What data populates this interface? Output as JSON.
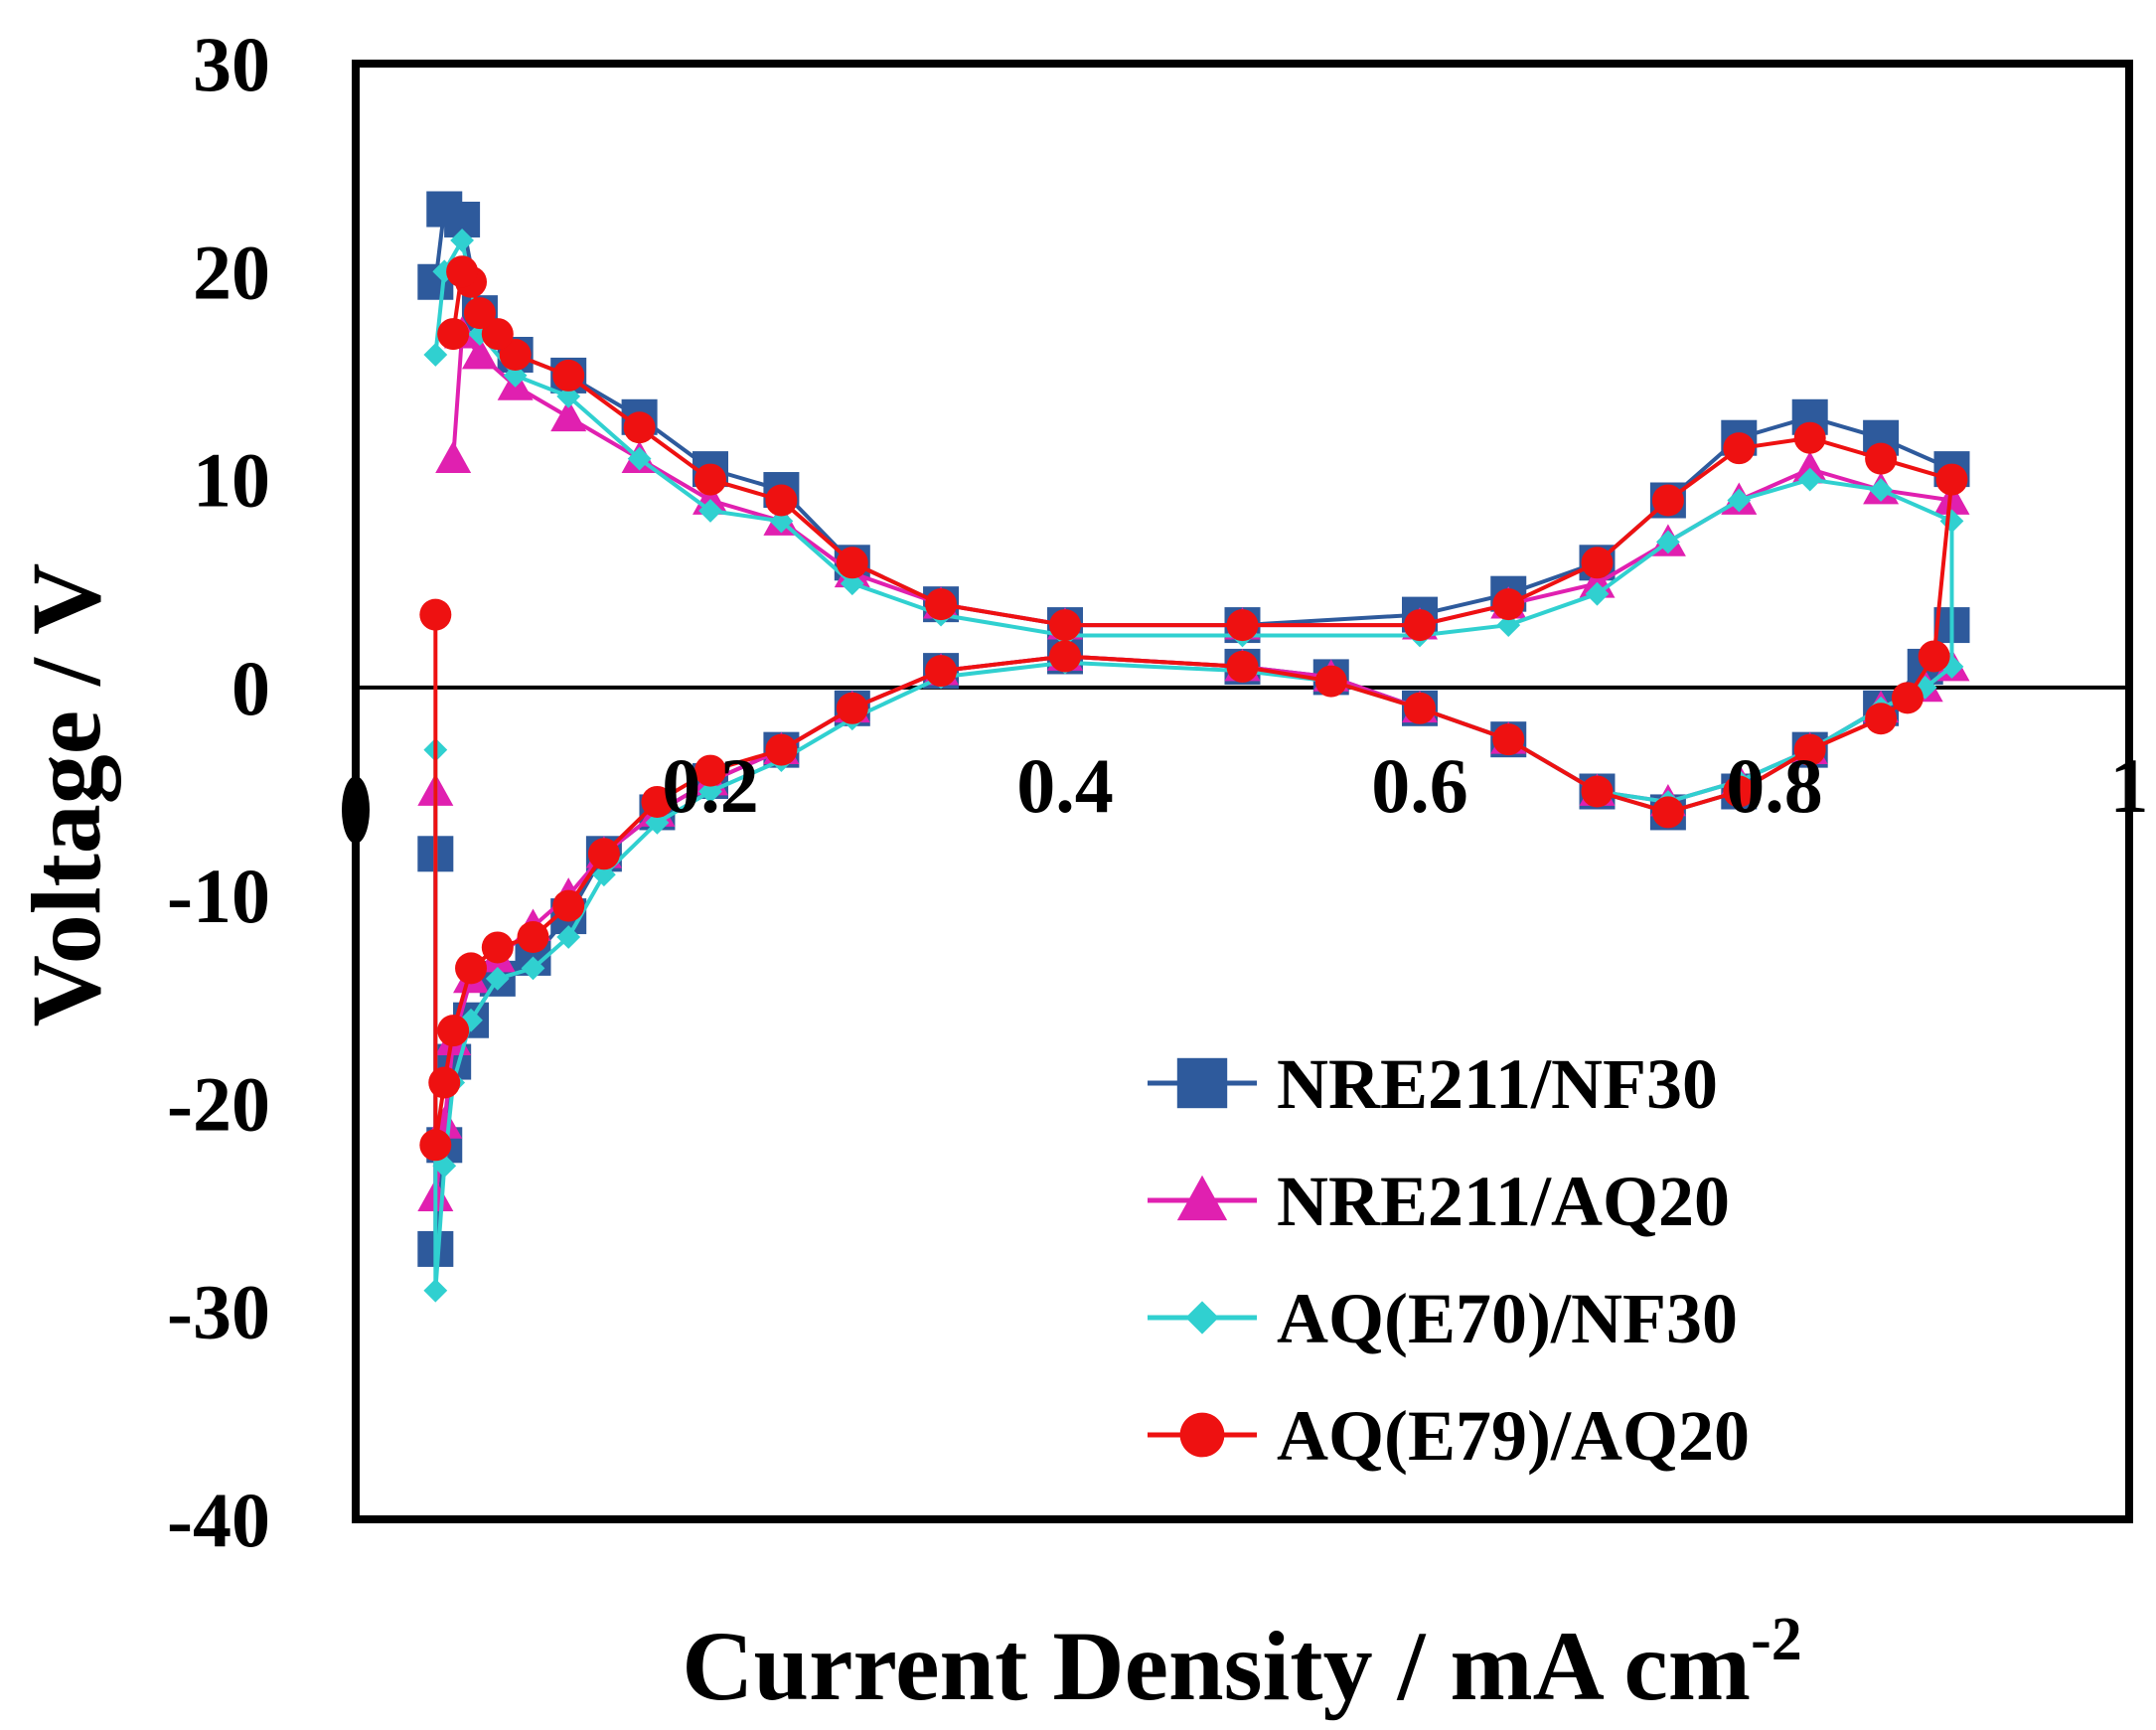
{
  "chart_data": {
    "type": "scatter",
    "title": "",
    "xlabel": "Current Density / mA cm",
    "xlabel_superscript": "-2",
    "ylabel": "Voltage / V",
    "xlim": [
      0,
      1
    ],
    "ylim": [
      -40,
      30
    ],
    "x_ticks": [
      "0",
      "0.2",
      "0.4",
      "0.6",
      "0.8",
      "1"
    ],
    "y_ticks": [
      "30",
      "20",
      "10",
      "0",
      "-10",
      "-20",
      "-30",
      "-40"
    ],
    "legend_position": "bottom-right",
    "series": [
      {
        "name": "NRE211/NF30",
        "color": "#2e5a9c",
        "marker": "square",
        "points": [
          [
            0.045,
            -8
          ],
          [
            0.045,
            -27
          ],
          [
            0.05,
            -22
          ],
          [
            0.055,
            -18
          ],
          [
            0.065,
            -16
          ],
          [
            0.08,
            -14
          ],
          [
            0.1,
            -13
          ],
          [
            0.12,
            -11
          ],
          [
            0.14,
            -8
          ],
          [
            0.17,
            -6
          ],
          [
            0.2,
            -4.5
          ],
          [
            0.24,
            -3
          ],
          [
            0.28,
            -1
          ],
          [
            0.33,
            0.8
          ],
          [
            0.4,
            1.5
          ],
          [
            0.5,
            1
          ],
          [
            0.55,
            0.5
          ],
          [
            0.6,
            -1
          ],
          [
            0.65,
            -2.5
          ],
          [
            0.7,
            -5
          ],
          [
            0.74,
            -6
          ],
          [
            0.78,
            -5
          ],
          [
            0.82,
            -3
          ],
          [
            0.86,
            -1
          ],
          [
            0.885,
            1
          ],
          [
            0.9,
            3
          ],
          [
            0.9,
            10.5
          ],
          [
            0.86,
            12
          ],
          [
            0.82,
            13
          ],
          [
            0.78,
            12
          ],
          [
            0.74,
            9
          ],
          [
            0.7,
            6
          ],
          [
            0.65,
            4.5
          ],
          [
            0.6,
            3.5
          ],
          [
            0.5,
            3
          ],
          [
            0.4,
            3
          ],
          [
            0.33,
            4
          ],
          [
            0.28,
            6
          ],
          [
            0.24,
            9.5
          ],
          [
            0.2,
            10.5
          ],
          [
            0.16,
            13
          ],
          [
            0.12,
            15
          ],
          [
            0.09,
            16
          ],
          [
            0.07,
            18
          ],
          [
            0.06,
            22.5
          ],
          [
            0.05,
            23
          ],
          [
            0.045,
            19.5
          ]
        ]
      },
      {
        "name": "NRE211/AQ20",
        "color": "#e020b0",
        "marker": "triangle",
        "points": [
          [
            0.045,
            -5
          ],
          [
            0.045,
            -24.5
          ],
          [
            0.05,
            -21
          ],
          [
            0.055,
            -17
          ],
          [
            0.065,
            -14
          ],
          [
            0.08,
            -13
          ],
          [
            0.1,
            -11.5
          ],
          [
            0.12,
            -10
          ],
          [
            0.14,
            -8
          ],
          [
            0.17,
            -6
          ],
          [
            0.2,
            -4.5
          ],
          [
            0.24,
            -3
          ],
          [
            0.28,
            -1
          ],
          [
            0.33,
            0.8
          ],
          [
            0.4,
            1.5
          ],
          [
            0.5,
            1
          ],
          [
            0.55,
            0.5
          ],
          [
            0.6,
            -1
          ],
          [
            0.65,
            -2.5
          ],
          [
            0.7,
            -5
          ],
          [
            0.74,
            -5.5
          ],
          [
            0.78,
            -4.5
          ],
          [
            0.82,
            -3
          ],
          [
            0.86,
            -1
          ],
          [
            0.885,
            0
          ],
          [
            0.9,
            1
          ],
          [
            0.9,
            9
          ],
          [
            0.86,
            9.5
          ],
          [
            0.82,
            10.5
          ],
          [
            0.78,
            9
          ],
          [
            0.74,
            7
          ],
          [
            0.7,
            5
          ],
          [
            0.65,
            4
          ],
          [
            0.6,
            3
          ],
          [
            0.5,
            3
          ],
          [
            0.4,
            3
          ],
          [
            0.33,
            4
          ],
          [
            0.28,
            5.5
          ],
          [
            0.24,
            8
          ],
          [
            0.2,
            9
          ],
          [
            0.16,
            11
          ],
          [
            0.12,
            13
          ],
          [
            0.09,
            14.5
          ],
          [
            0.07,
            16
          ],
          [
            0.06,
            17
          ],
          [
            0.055,
            11
          ]
        ]
      },
      {
        "name": "AQ(E70)/NF30",
        "color": "#30d0d0",
        "marker": "diamond",
        "points": [
          [
            0.045,
            -3
          ],
          [
            0.045,
            -29
          ],
          [
            0.05,
            -23
          ],
          [
            0.055,
            -19
          ],
          [
            0.065,
            -16
          ],
          [
            0.08,
            -14
          ],
          [
            0.1,
            -13.5
          ],
          [
            0.12,
            -12
          ],
          [
            0.14,
            -9
          ],
          [
            0.17,
            -6.5
          ],
          [
            0.2,
            -5
          ],
          [
            0.24,
            -3.5
          ],
          [
            0.28,
            -1.5
          ],
          [
            0.33,
            0.5
          ],
          [
            0.4,
            1.2
          ],
          [
            0.5,
            0.8
          ],
          [
            0.55,
            0.3
          ],
          [
            0.6,
            -1
          ],
          [
            0.65,
            -2.5
          ],
          [
            0.7,
            -5
          ],
          [
            0.74,
            -5.5
          ],
          [
            0.78,
            -4.5
          ],
          [
            0.82,
            -3
          ],
          [
            0.86,
            -1
          ],
          [
            0.885,
            0
          ],
          [
            0.9,
            1
          ],
          [
            0.9,
            8
          ],
          [
            0.86,
            9.5
          ],
          [
            0.82,
            10
          ],
          [
            0.78,
            9
          ],
          [
            0.74,
            7
          ],
          [
            0.7,
            4.5
          ],
          [
            0.65,
            3
          ],
          [
            0.6,
            2.5
          ],
          [
            0.5,
            2.5
          ],
          [
            0.4,
            2.5
          ],
          [
            0.33,
            3.5
          ],
          [
            0.28,
            5
          ],
          [
            0.24,
            8
          ],
          [
            0.2,
            8.5
          ],
          [
            0.16,
            11
          ],
          [
            0.12,
            14
          ],
          [
            0.09,
            15
          ],
          [
            0.07,
            17
          ],
          [
            0.06,
            21.5
          ],
          [
            0.05,
            20
          ],
          [
            0.045,
            16
          ]
        ]
      },
      {
        "name": "AQ(E79)/AQ20",
        "color": "#ee1111",
        "marker": "circle",
        "points": [
          [
            0.045,
            3.5
          ],
          [
            0.045,
            -22
          ],
          [
            0.05,
            -19
          ],
          [
            0.055,
            -16.5
          ],
          [
            0.065,
            -13.5
          ],
          [
            0.08,
            -12.5
          ],
          [
            0.1,
            -12
          ],
          [
            0.12,
            -10.5
          ],
          [
            0.14,
            -8
          ],
          [
            0.17,
            -5.5
          ],
          [
            0.2,
            -4
          ],
          [
            0.24,
            -3
          ],
          [
            0.28,
            -1
          ],
          [
            0.33,
            0.8
          ],
          [
            0.4,
            1.5
          ],
          [
            0.5,
            1
          ],
          [
            0.55,
            0.3
          ],
          [
            0.6,
            -1
          ],
          [
            0.65,
            -2.5
          ],
          [
            0.7,
            -5
          ],
          [
            0.74,
            -6
          ],
          [
            0.78,
            -5
          ],
          [
            0.82,
            -3
          ],
          [
            0.86,
            -1.5
          ],
          [
            0.875,
            -0.5
          ],
          [
            0.89,
            1.5
          ],
          [
            0.9,
            10
          ],
          [
            0.86,
            11
          ],
          [
            0.82,
            12
          ],
          [
            0.78,
            11.5
          ],
          [
            0.74,
            9
          ],
          [
            0.7,
            6
          ],
          [
            0.65,
            4
          ],
          [
            0.6,
            3
          ],
          [
            0.5,
            3
          ],
          [
            0.4,
            3
          ],
          [
            0.33,
            4
          ],
          [
            0.28,
            6
          ],
          [
            0.24,
            9
          ],
          [
            0.2,
            10
          ],
          [
            0.16,
            12.5
          ],
          [
            0.12,
            15
          ],
          [
            0.09,
            16
          ],
          [
            0.08,
            17
          ],
          [
            0.07,
            18
          ],
          [
            0.065,
            19.5
          ],
          [
            0.06,
            20
          ],
          [
            0.055,
            17
          ]
        ]
      }
    ]
  }
}
